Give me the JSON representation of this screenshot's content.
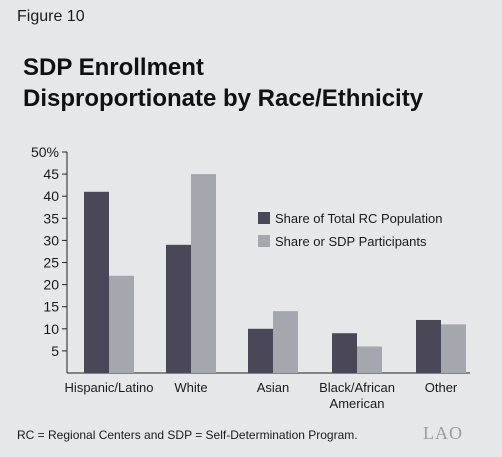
{
  "figure_label": "Figure 10",
  "title_lines": [
    "SDP Enrollment",
    "Disproportionate by Race/Ethnicity"
  ],
  "footnote": "RC = Regional Centers and SDP = Self-Determination Program.",
  "logo_text": "LAO",
  "colors": {
    "series1": "#4a4759",
    "series2": "#a4a7ae",
    "background": "#e6e7e8"
  },
  "chart_data": {
    "type": "bar",
    "categories": [
      [
        "Hispanic/Latino"
      ],
      [
        "White"
      ],
      [
        "Asian"
      ],
      [
        "Black/African",
        "American"
      ],
      [
        "Other"
      ]
    ],
    "series": [
      {
        "name": "Share of Total RC Population",
        "values": [
          41,
          29,
          10,
          9,
          12
        ]
      },
      {
        "name": "Share or SDP Participants",
        "values": [
          22,
          45,
          14,
          6,
          11
        ]
      }
    ],
    "yticks": [
      "5",
      "10",
      "15",
      "20",
      "25",
      "30",
      "35",
      "40",
      "45",
      "50%"
    ],
    "ytick_values": [
      5,
      10,
      15,
      20,
      25,
      30,
      35,
      40,
      45,
      50
    ],
    "ylim": [
      0,
      50
    ],
    "legend_position": "right",
    "grid": false
  }
}
